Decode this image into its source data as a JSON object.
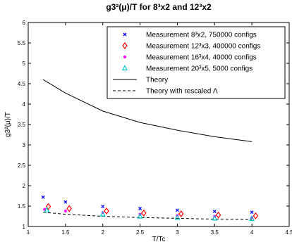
{
  "chart_data": {
    "type": "scatter",
    "title": "g3²(μ)/T for 8³x2 and 12³x2",
    "xlabel": "T/Tc",
    "ylabel": "g3²(μ)/T",
    "xlim": [
      1,
      4.5
    ],
    "ylim": [
      1,
      6
    ],
    "xticks": [
      "1",
      "1.5",
      "2",
      "2.5",
      "3",
      "3.5",
      "4",
      "4.5"
    ],
    "yticks": [
      "1",
      "1.5",
      "2",
      "2.5",
      "3",
      "3.5",
      "4",
      "4.5",
      "5",
      "5.5",
      "6"
    ],
    "legend_position": "top-right",
    "series": [
      {
        "name": "Measurement 8³x2, 750000 configs",
        "marker": "x",
        "color": "#0000ff",
        "x": [
          1.2,
          1.5,
          2.0,
          2.5,
          3.0,
          3.5,
          4.0
        ],
        "y": [
          1.72,
          1.6,
          1.49,
          1.44,
          1.4,
          1.37,
          1.35
        ]
      },
      {
        "name": "Measurement 12³x3, 400000 configs",
        "marker": "diamond",
        "color": "#ff0000",
        "x": [
          1.27,
          1.55,
          2.05,
          2.55,
          3.05,
          3.55,
          4.05
        ],
        "y": [
          1.49,
          1.44,
          1.38,
          1.33,
          1.31,
          1.28,
          1.26
        ]
      },
      {
        "name": "Measurement 16³x4, 40000 configs",
        "marker": "dot",
        "color": "#ff00ff",
        "x": [
          1.22,
          1.5,
          2.0,
          2.5,
          3.0,
          3.5,
          4.0
        ],
        "y": [
          1.42,
          1.38,
          1.34,
          1.3,
          1.27,
          1.25,
          1.22
        ]
      },
      {
        "name": "Measurement 20³x5, 5000 configs",
        "marker": "triangle",
        "color": "#00c8c8",
        "x": [
          1.25,
          2.0,
          2.5,
          3.0,
          3.5,
          4.0
        ],
        "y": [
          1.4,
          1.3,
          1.25,
          1.22,
          1.2,
          1.19
        ]
      },
      {
        "name": "Theory",
        "line": "solid",
        "color": "#000000",
        "x": [
          1.2,
          1.5,
          2.0,
          2.5,
          3.0,
          3.5,
          4.0
        ],
        "y": [
          4.6,
          4.27,
          3.83,
          3.55,
          3.36,
          3.2,
          3.08
        ]
      },
      {
        "name": "Theory with rescaled Λ",
        "line": "dashed",
        "color": "#000000",
        "x": [
          1.2,
          1.5,
          2.0,
          2.5,
          3.0,
          3.5,
          4.0
        ],
        "y": [
          1.35,
          1.3,
          1.25,
          1.22,
          1.2,
          1.18,
          1.17
        ]
      }
    ]
  }
}
